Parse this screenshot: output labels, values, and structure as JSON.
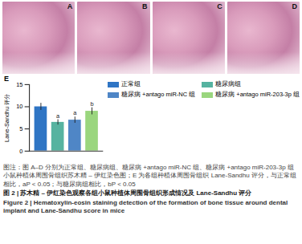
{
  "chart_data": {
    "type": "bar",
    "categories": [
      "正常组",
      "糖尿病组",
      "糖尿病 +antago miR-NC 组",
      "糖尿病 +antago miR-203-3p 组"
    ],
    "values": [
      10,
      6.5,
      7,
      9
    ],
    "errors": [
      0.8,
      0.6,
      0.7,
      0.8
    ],
    "significance": [
      null,
      "a",
      "a",
      "b"
    ],
    "colors": [
      "#2f75c4",
      "#56b3a0",
      "#4f86c6",
      "#9ad67e"
    ],
    "y_label": "Lane-Sandhu 评分",
    "ylim": [
      0,
      15
    ],
    "yticks": [
      0,
      5,
      10,
      15
    ],
    "grid": false,
    "legend": "top-right",
    "tick_labels": "y"
  },
  "panels": [
    "A",
    "B",
    "C",
    "D"
  ],
  "chart_panel": "E",
  "note": "图注：图 A–D 分别为正常组、糖尿病组、糖尿病 +antago miR-NC 组、糖尿病 +antago miR-203-3p 组小鼠种植体周围骨组织苏木精 – 伊红染色图；E 为各组种植体周围骨组织 Lane-Sandhu 评分，与正常组相比，aP < 0.05；与糖尿病组相比，bP < 0.05",
  "title": "图 2 | 苏木精 – 伊红染色观察各组小鼠种植体周围骨组织形成情况及 Lane-Sandhu 评分",
  "title_en": "Figure 2 | Hematoxylin-eosin staining detection of the formation of bone tissue around dental implant and Lane-Sandhu score in mice"
}
